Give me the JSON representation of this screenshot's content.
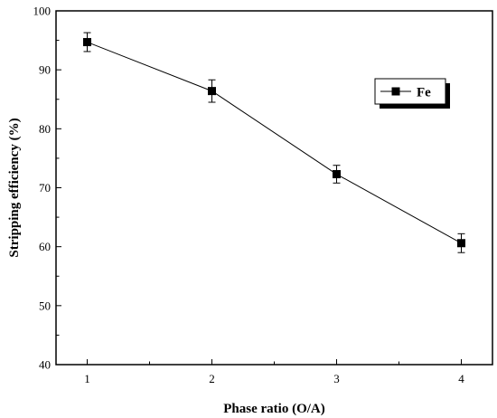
{
  "chart_data": {
    "type": "line",
    "title": "",
    "xlabel": "Phase ratio (O/A)",
    "ylabel": "Stripping efficiency (%)",
    "xlim": [
      0.75,
      4.25
    ],
    "ylim": [
      40,
      100
    ],
    "x_ticks": [
      1,
      2,
      3,
      4
    ],
    "y_ticks": [
      40,
      50,
      60,
      70,
      80,
      90,
      100
    ],
    "grid": false,
    "legend_position": "top-right",
    "series": [
      {
        "name": "Fe",
        "marker": "square",
        "color": "#000000",
        "x": [
          1,
          2,
          3,
          4
        ],
        "y": [
          94.7,
          86.4,
          72.3,
          60.6
        ],
        "error": [
          1.6,
          1.9,
          1.5,
          1.6
        ]
      }
    ]
  }
}
